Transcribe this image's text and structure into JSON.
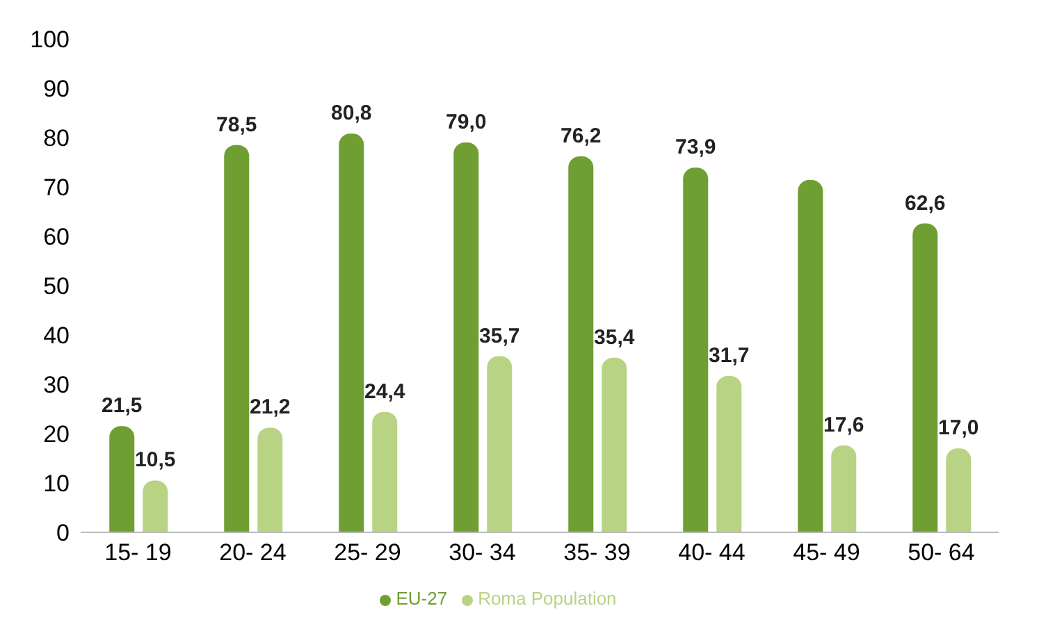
{
  "chart_data": {
    "type": "bar",
    "categories": [
      "15- 19",
      "20- 24",
      "25- 29",
      "30- 34",
      "35- 39",
      "40- 44",
      "45- 49",
      "50- 64"
    ],
    "series": [
      {
        "name": "EU-27",
        "color": "#6f9e32",
        "values": [
          21.5,
          78.5,
          80.8,
          79.0,
          76.2,
          73.9,
          71.4,
          62.6
        ],
        "value_labels": [
          "21,5",
          "78,5",
          "80,8",
          "79,0",
          "76,2",
          "73,9",
          null,
          "62,6"
        ]
      },
      {
        "name": "Roma Population",
        "color": "#b8d384",
        "values": [
          10.5,
          21.2,
          24.4,
          35.7,
          35.4,
          31.7,
          17.6,
          17.0
        ],
        "value_labels": [
          "10,5",
          "21,2",
          "24,4",
          "35,7",
          "35,4",
          "31,7",
          "17,6",
          "17,0"
        ]
      }
    ],
    "ylim": [
      0,
      100
    ],
    "yticks": [
      0,
      10,
      20,
      30,
      40,
      50,
      60,
      70,
      80,
      90,
      100
    ],
    "legend": "bottom",
    "grid": false
  }
}
